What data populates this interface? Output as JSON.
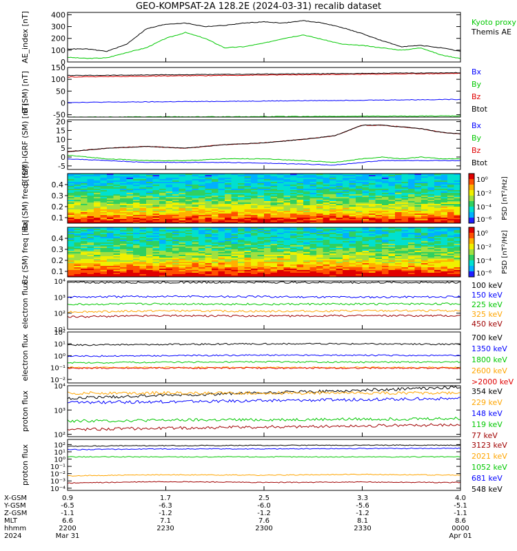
{
  "title": "GEO-KOMPSAT-2A 128.2E (2024-03-31) recalib dataset",
  "colors": {
    "black": "#000000",
    "green": "#00c800",
    "blue": "#0000ff",
    "red": "#e00000",
    "orange": "#ffa500",
    "cyan": "#0090ff",
    "darkred": "#a00000",
    "lime": "#00ff00"
  },
  "chart_data": [
    {
      "type": "line",
      "id": "ae",
      "ylabel": "AE_index [nT]",
      "ylim": [
        0,
        420
      ],
      "yticks": [
        0,
        100,
        200,
        300,
        400
      ],
      "x": [
        0.0,
        0.05,
        0.1,
        0.15,
        0.2,
        0.25,
        0.3,
        0.35,
        0.4,
        0.45,
        0.5,
        0.55,
        0.6,
        0.65,
        0.7,
        0.75,
        0.8,
        0.85,
        0.9,
        0.95,
        1.0
      ],
      "series": [
        {
          "name": "Kyoto proxy AE",
          "color": "#00c800",
          "values": [
            40,
            30,
            35,
            80,
            120,
            200,
            250,
            200,
            120,
            130,
            160,
            200,
            230,
            190,
            150,
            140,
            120,
            100,
            120,
            60,
            30
          ]
        },
        {
          "name": "Themis AE",
          "color": "#000000",
          "values": [
            110,
            110,
            90,
            150,
            280,
            320,
            330,
            300,
            310,
            330,
            340,
            330,
            350,
            330,
            290,
            240,
            180,
            130,
            140,
            120,
            90
          ]
        }
      ]
    },
    {
      "type": "line",
      "id": "bsm",
      "ylabel": "B (SM) [nT]",
      "ylim": [
        -60,
        150
      ],
      "yticks": [
        -50,
        0,
        50,
        100,
        150
      ],
      "x": [
        0.0,
        0.5,
        1.0
      ],
      "series": [
        {
          "name": "Bx",
          "color": "#0000ff",
          "values": [
            2,
            8,
            15
          ]
        },
        {
          "name": "By",
          "color": "#00c800",
          "values": [
            -60,
            -58,
            -55
          ]
        },
        {
          "name": "Bz",
          "color": "#e00000",
          "values": [
            110,
            118,
            125
          ]
        },
        {
          "name": "Btot",
          "color": "#000000",
          "values": [
            116,
            122,
            128
          ]
        }
      ]
    },
    {
      "type": "line",
      "id": "bdiff",
      "ylabel": "B (SM)-IGRF (SM) [nT]",
      "ylim": [
        -7,
        21
      ],
      "yticks": [
        -5,
        0,
        5,
        10,
        15,
        20
      ],
      "x": [
        0.0,
        0.1,
        0.2,
        0.3,
        0.4,
        0.5,
        0.6,
        0.68,
        0.75,
        0.8,
        0.85,
        0.9,
        0.95,
        1.0
      ],
      "series": [
        {
          "name": "Bx",
          "color": "#0000ff",
          "values": [
            -1,
            -2,
            -3,
            -3,
            -3,
            -3.5,
            -4,
            -4.5,
            -3,
            -2,
            -2,
            -2,
            -2,
            -2
          ]
        },
        {
          "name": "By",
          "color": "#00c800",
          "values": [
            1,
            -1,
            -2,
            -2,
            -1,
            -1,
            -2,
            -3,
            -1,
            0,
            -1,
            0,
            -1,
            -1
          ]
        },
        {
          "name": "Bz",
          "color": "#e00000",
          "values": [
            3,
            5,
            6,
            5,
            7,
            8,
            10,
            12,
            18,
            18,
            17,
            16,
            14,
            13
          ]
        },
        {
          "name": "Btot",
          "color": "#000000",
          "values": [
            3,
            5,
            6,
            5,
            7,
            8,
            10,
            12,
            18,
            18,
            17,
            16,
            14,
            13
          ]
        }
      ]
    },
    {
      "type": "heatmap",
      "id": "bxspec",
      "ylabel": "Bx (SM) freq [Hz]",
      "ylim": [
        0.05,
        0.5
      ],
      "yticks": [
        0.1,
        0.2,
        0.3,
        0.4
      ],
      "colorbar_ticks": [
        "10⁰",
        "10⁻²",
        "10⁻⁴",
        "10⁻⁶"
      ],
      "colorbar_label": "PSD [nT²/Hz]"
    },
    {
      "type": "heatmap",
      "id": "bzspec",
      "ylabel": "Bz (SM) freq [Hz]",
      "ylim": [
        0.05,
        0.5
      ],
      "yticks": [
        0.1,
        0.2,
        0.3,
        0.4
      ],
      "colorbar_ticks": [
        "10⁰",
        "10⁻²",
        "10⁻⁴",
        "10⁻⁶"
      ],
      "colorbar_label": "PSD [nT²/Hz]"
    },
    {
      "type": "line",
      "id": "elo",
      "log": true,
      "ylabel": "electron flux",
      "ylim": [
        10,
        10000
      ],
      "yticklabels": [
        "10¹",
        "10²",
        "10³",
        "10⁴"
      ],
      "x": [
        0.0,
        0.25,
        0.5,
        0.75,
        1.0
      ],
      "series": [
        {
          "name": "100 keV",
          "color": "#000000",
          "values": [
            8000,
            8200,
            8300,
            8100,
            8200
          ]
        },
        {
          "name": "150 keV",
          "color": "#0000ff",
          "values": [
            1000,
            1100,
            1050,
            1000,
            1050
          ]
        },
        {
          "name": "225 keV",
          "color": "#00c800",
          "values": [
            350,
            380,
            360,
            370,
            380
          ]
        },
        {
          "name": "325 keV",
          "color": "#ffa500",
          "values": [
            120,
            140,
            130,
            140,
            140
          ]
        },
        {
          "name": "450 keV",
          "color": "#a00000",
          "values": [
            60,
            70,
            65,
            70,
            70
          ]
        }
      ]
    },
    {
      "type": "line",
      "id": "ehi",
      "log": true,
      "ylabel": "electron flux",
      "ylim": [
        0.005,
        100
      ],
      "yticklabels": [
        "10⁻²",
        "10⁻¹",
        "10⁰",
        "10¹",
        "10²"
      ],
      "x": [
        0.0,
        0.25,
        0.5,
        0.75,
        1.0
      ],
      "series": [
        {
          "name": "700 keV",
          "color": "#000000",
          "values": [
            8,
            9,
            10,
            10,
            9
          ]
        },
        {
          "name": "1350 keV",
          "color": "#0000ff",
          "values": [
            0.9,
            1.0,
            1.1,
            1.1,
            1.0
          ]
        },
        {
          "name": "1800 keV",
          "color": "#00c800",
          "values": [
            0.25,
            0.28,
            0.3,
            0.28,
            0.3
          ]
        },
        {
          "name": "2600 keV",
          "color": "#ffa500",
          "values": [
            0.1,
            0.1,
            0.1,
            0.1,
            0.1
          ]
        },
        {
          "name": ">2000 keV",
          "color": "#e00000",
          "values": [
            0.09,
            0.09,
            0.09,
            0.09,
            0.09
          ]
        }
      ]
    },
    {
      "type": "line",
      "id": "plo",
      "log": true,
      "ylabel": "proton flux",
      "ylim": [
        80,
        10000
      ],
      "yticklabels": [
        "10²",
        "10³",
        "10⁴"
      ],
      "x": [
        0.0,
        0.25,
        0.5,
        0.75,
        1.0
      ],
      "series": [
        {
          "name": "354 keV",
          "color": "#000000",
          "values": [
            3000,
            4000,
            5000,
            6500,
            8500
          ]
        },
        {
          "name": "229 keV",
          "color": "#ffa500",
          "values": [
            5000,
            5000,
            5000,
            5000,
            5000
          ]
        },
        {
          "name": "148 keV",
          "color": "#0000ff",
          "values": [
            2000,
            2200,
            2400,
            2700,
            3000
          ]
        },
        {
          "name": "119 keV",
          "color": "#00c800",
          "values": [
            350,
            380,
            400,
            420,
            450
          ]
        },
        {
          "name": "77 keV",
          "color": "#a00000",
          "values": [
            160,
            180,
            200,
            220,
            250
          ]
        }
      ]
    },
    {
      "type": "line",
      "id": "phi",
      "log": true,
      "ylabel": "proton flux",
      "ylim": [
        5e-05,
        500
      ],
      "yticklabels": [
        "10⁻⁴",
        "10⁻³",
        "10⁻²",
        "10⁻¹",
        "10⁰",
        "10¹",
        "10²"
      ],
      "x": [
        0.0,
        0.25,
        0.5,
        0.75,
        1.0
      ],
      "series": [
        {
          "name": "3123 keV",
          "color": "#a00000",
          "values": [
            0.0005,
            0.0008,
            0.0006,
            0.0007,
            0.0006
          ]
        },
        {
          "name": "2021 keV",
          "color": "#ffa500",
          "values": [
            0.005,
            0.007,
            0.006,
            0.008,
            0.006
          ]
        },
        {
          "name": "1052 keV",
          "color": "#00c800",
          "values": [
            2,
            2,
            2,
            2,
            2
          ]
        },
        {
          "name": "681 keV",
          "color": "#0000ff",
          "values": [
            20,
            25,
            25,
            28,
            30
          ]
        },
        {
          "name": "548 keV",
          "color": "#000000",
          "values": [
            60,
            70,
            75,
            80,
            80
          ]
        }
      ]
    }
  ],
  "ephemeris": {
    "labels": [
      "X-GSM",
      "Y-GSM",
      "Z-GSM",
      "MLT",
      "hhmm",
      "2024"
    ],
    "columns": [
      [
        "0.9",
        "-6.5",
        "-1.1",
        "6.6",
        "2200",
        "Mar 31"
      ],
      [
        "1.7",
        "-6.3",
        "-1.2",
        "7.1",
        "2230",
        ""
      ],
      [
        "2.5",
        "-6.0",
        "-1.2",
        "7.6",
        "2300",
        ""
      ],
      [
        "3.3",
        "-5.6",
        "-1.2",
        "8.1",
        "2330",
        ""
      ],
      [
        "4.0",
        "-5.1",
        "-1.1",
        "8.6",
        "0000",
        "Apr 01"
      ]
    ]
  }
}
